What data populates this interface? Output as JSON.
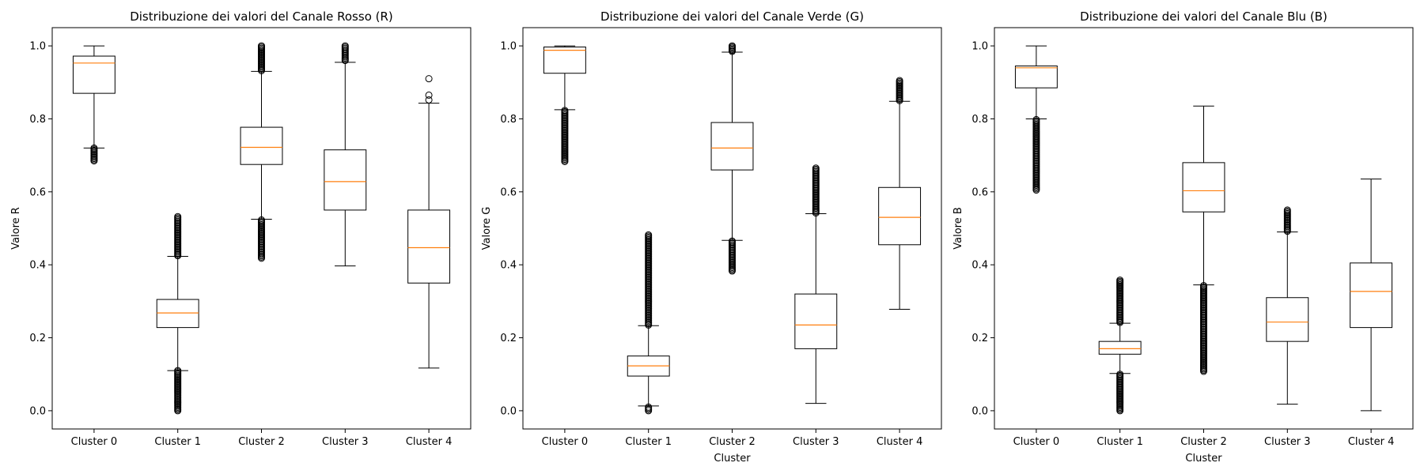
{
  "chart_data": [
    {
      "type": "box",
      "title": "Distribuzione dei valori del Canale Rosso (R)",
      "xlabel": "",
      "ylabel": "Valore R",
      "ylim": [
        -0.05,
        1.05
      ],
      "yticks": [
        "0.0",
        "0.2",
        "0.4",
        "0.6",
        "0.8",
        "1.0"
      ],
      "categories": [
        "Cluster 0",
        "Cluster 1",
        "Cluster 2",
        "Cluster 3",
        "Cluster 4"
      ],
      "boxes": [
        {
          "whisker_low": 0.72,
          "q1": 0.87,
          "median": 0.953,
          "q3": 0.972,
          "whisker_high": 1.0,
          "flier_low": [
            0.685,
            0.72
          ],
          "flier_high": []
        },
        {
          "whisker_low": 0.11,
          "q1": 0.228,
          "median": 0.268,
          "q3": 0.305,
          "whisker_high": 0.423,
          "flier_low": [
            0.0,
            0.11
          ],
          "flier_high": [
            0.425,
            0.532
          ]
        },
        {
          "whisker_low": 0.525,
          "q1": 0.675,
          "median": 0.722,
          "q3": 0.777,
          "whisker_high": 0.93,
          "flier_low": [
            0.418,
            0.523
          ],
          "flier_high": [
            0.932,
            1.0
          ]
        },
        {
          "whisker_low": 0.397,
          "q1": 0.55,
          "median": 0.628,
          "q3": 0.715,
          "whisker_high": 0.955,
          "flier_low": [],
          "flier_high": [
            0.96,
            1.0
          ]
        },
        {
          "whisker_low": 0.117,
          "q1": 0.35,
          "median": 0.447,
          "q3": 0.55,
          "whisker_high": 0.843,
          "flier_low": [],
          "flier_high": [
            0.852,
            0.865,
            0.91
          ]
        }
      ]
    },
    {
      "type": "box",
      "title": "Distribuzione dei valori del Canale Verde (G)",
      "xlabel": "Cluster",
      "ylabel": "Valore G",
      "ylim": [
        -0.05,
        1.05
      ],
      "yticks": [
        "0.0",
        "0.2",
        "0.4",
        "0.6",
        "0.8",
        "1.0"
      ],
      "categories": [
        "Cluster 0",
        "Cluster 1",
        "Cluster 2",
        "Cluster 3",
        "Cluster 4"
      ],
      "boxes": [
        {
          "whisker_low": 0.825,
          "q1": 0.925,
          "median": 0.988,
          "q3": 0.997,
          "whisker_high": 1.0,
          "flier_low": [
            0.683,
            0.823
          ],
          "flier_high": []
        },
        {
          "whisker_low": 0.013,
          "q1": 0.095,
          "median": 0.123,
          "q3": 0.15,
          "whisker_high": 0.233,
          "flier_low": [
            0.0,
            0.01
          ],
          "flier_high": [
            0.235,
            0.482
          ]
        },
        {
          "whisker_low": 0.467,
          "q1": 0.66,
          "median": 0.72,
          "q3": 0.79,
          "whisker_high": 0.983,
          "flier_low": [
            0.383,
            0.465
          ],
          "flier_high": [
            0.985,
            1.0
          ]
        },
        {
          "whisker_low": 0.02,
          "q1": 0.17,
          "median": 0.235,
          "q3": 0.32,
          "whisker_high": 0.54,
          "flier_low": [],
          "flier_high": [
            0.542,
            0.665
          ]
        },
        {
          "whisker_low": 0.278,
          "q1": 0.455,
          "median": 0.53,
          "q3": 0.612,
          "whisker_high": 0.848,
          "flier_low": [],
          "flier_high": [
            0.85,
            0.905
          ]
        }
      ]
    },
    {
      "type": "box",
      "title": "Distribuzione dei valori del Canale Blu (B)",
      "xlabel": "Cluster",
      "ylabel": "Valore B",
      "ylim": [
        -0.05,
        1.05
      ],
      "yticks": [
        "0.0",
        "0.2",
        "0.4",
        "0.6",
        "0.8",
        "1.0"
      ],
      "categories": [
        "Cluster 0",
        "Cluster 1",
        "Cluster 2",
        "Cluster 3",
        "Cluster 4"
      ],
      "boxes": [
        {
          "whisker_low": 0.8,
          "q1": 0.885,
          "median": 0.94,
          "q3": 0.945,
          "whisker_high": 1.0,
          "flier_low": [
            0.605,
            0.798
          ],
          "flier_high": []
        },
        {
          "whisker_low": 0.102,
          "q1": 0.155,
          "median": 0.17,
          "q3": 0.19,
          "whisker_high": 0.24,
          "flier_low": [
            0.0,
            0.1
          ],
          "flier_high": [
            0.242,
            0.358
          ]
        },
        {
          "whisker_low": 0.345,
          "q1": 0.545,
          "median": 0.603,
          "q3": 0.68,
          "whisker_high": 0.835,
          "flier_low": [
            0.108,
            0.343
          ],
          "flier_high": []
        },
        {
          "whisker_low": 0.018,
          "q1": 0.19,
          "median": 0.243,
          "q3": 0.31,
          "whisker_high": 0.49,
          "flier_low": [],
          "flier_high": [
            0.492,
            0.55
          ]
        },
        {
          "whisker_low": 0.0,
          "q1": 0.228,
          "median": 0.327,
          "q3": 0.405,
          "whisker_high": 0.635,
          "flier_low": [],
          "flier_high": []
        }
      ]
    }
  ]
}
